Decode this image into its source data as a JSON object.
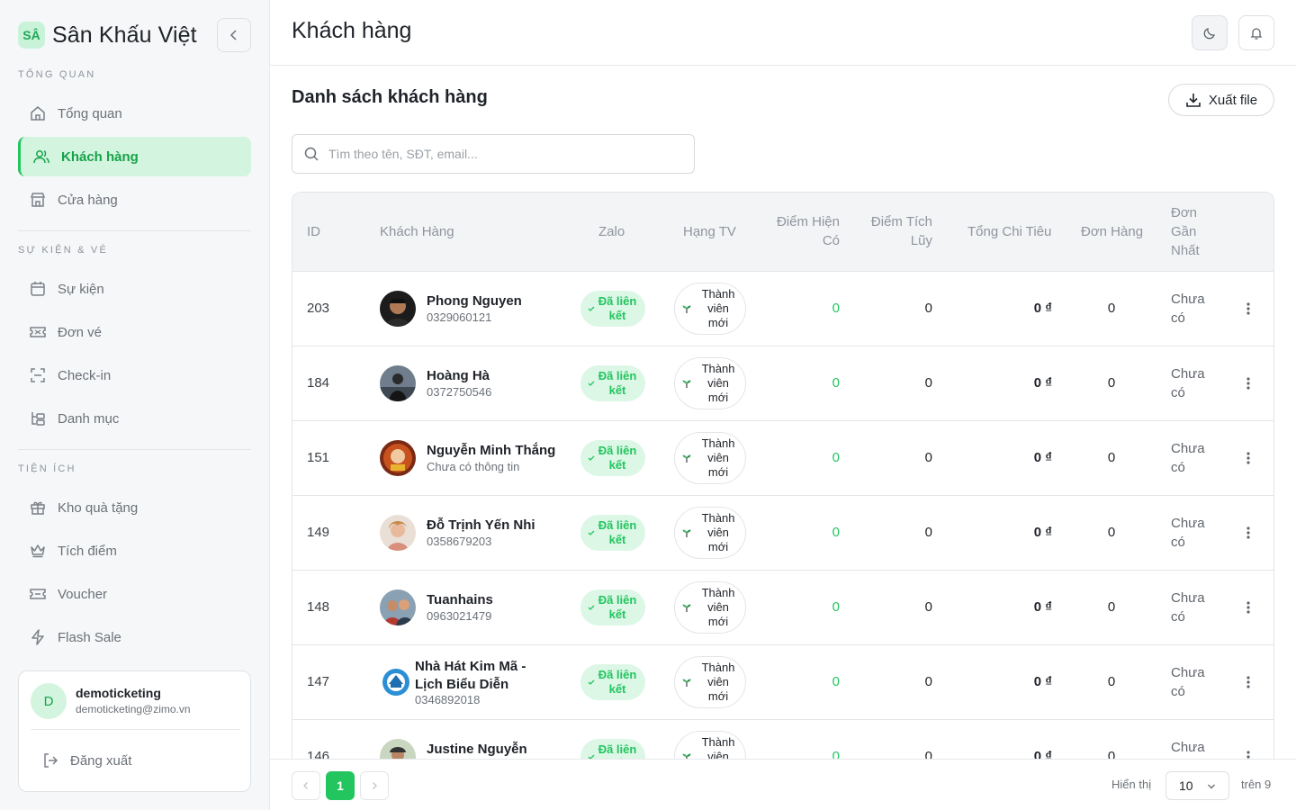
{
  "brand": {
    "logo_text": "SÂ",
    "name": "Sân Khấu Việt"
  },
  "sidebar": {
    "sections": [
      {
        "title": "TỔNG QUAN",
        "items": [
          {
            "label": "Tổng quan",
            "icon": "home-icon"
          },
          {
            "label": "Khách hàng",
            "icon": "users-icon",
            "active": true
          },
          {
            "label": "Cửa hàng",
            "icon": "store-icon"
          }
        ]
      },
      {
        "title": "SỰ KIỆN & VÉ",
        "items": [
          {
            "label": "Sự kiện",
            "icon": "calendar-icon"
          },
          {
            "label": "Đơn vé",
            "icon": "ticket-icon"
          },
          {
            "label": "Check-in",
            "icon": "scan-icon"
          },
          {
            "label": "Danh mục",
            "icon": "category-icon"
          }
        ]
      },
      {
        "title": "TIỆN ÍCH",
        "items": [
          {
            "label": "Kho quà tặng",
            "icon": "gift-icon"
          },
          {
            "label": "Tích điểm",
            "icon": "crown-icon"
          },
          {
            "label": "Voucher",
            "icon": "voucher-icon"
          },
          {
            "label": "Flash Sale",
            "icon": "lightning-icon"
          }
        ]
      }
    ],
    "user": {
      "initial": "D",
      "name": "demoticketing",
      "email": "demoticketing@zimo.vn",
      "logout_label": "Đăng xuất"
    }
  },
  "header": {
    "title": "Khách hàng"
  },
  "main": {
    "section_title": "Danh sách khách hàng",
    "export_label": "Xuất file",
    "search_placeholder": "Tìm theo tên, SĐT, email...",
    "columns": [
      "ID",
      "Khách Hàng",
      "Zalo",
      "Hạng TV",
      "Điểm Hiện Có",
      "Điểm Tích Lũy",
      "Tổng Chi Tiêu",
      "Đơn Hàng",
      "Đơn Gần Nhất"
    ],
    "rows": [
      {
        "id": "203",
        "name": "Phong Nguyen",
        "sub": "0329060121",
        "zalo": "Đã liên kết",
        "tier": "Thành viên mới",
        "points": "0",
        "accumulated": "0",
        "spent": "0 ₫",
        "orders": "0",
        "last_order": "Chưa có"
      },
      {
        "id": "184",
        "name": "Hoàng Hà",
        "sub": "0372750546",
        "zalo": "Đã liên kết",
        "tier": "Thành viên mới",
        "points": "0",
        "accumulated": "0",
        "spent": "0 ₫",
        "orders": "0",
        "last_order": "Chưa có"
      },
      {
        "id": "151",
        "name": "Nguyễn Minh Thắng",
        "sub": "Chưa có thông tin",
        "zalo": "Đã liên kết",
        "tier": "Thành viên mới",
        "points": "0",
        "accumulated": "0",
        "spent": "0 ₫",
        "orders": "0",
        "last_order": "Chưa có"
      },
      {
        "id": "149",
        "name": "Đỗ Trịnh Yến Nhi",
        "sub": "0358679203",
        "zalo": "Đã liên kết",
        "tier": "Thành viên mới",
        "points": "0",
        "accumulated": "0",
        "spent": "0 ₫",
        "orders": "0",
        "last_order": "Chưa có"
      },
      {
        "id": "148",
        "name": "Tuanhains",
        "sub": "0963021479",
        "zalo": "Đã liên kết",
        "tier": "Thành viên mới",
        "points": "0",
        "accumulated": "0",
        "spent": "0 ₫",
        "orders": "0",
        "last_order": "Chưa có"
      },
      {
        "id": "147",
        "name": "Nhà Hát Kim Mã - Lịch Biểu Diễn",
        "sub": "0346892018",
        "zalo": "Đã liên kết",
        "tier": "Thành viên mới",
        "points": "0",
        "accumulated": "0",
        "spent": "0 ₫",
        "orders": "0",
        "last_order": "Chưa có"
      },
      {
        "id": "146",
        "name": "Justine Nguyễn",
        "sub": "",
        "zalo": "Đã liên kết",
        "tier": "Thành viên mới",
        "points": "0",
        "accumulated": "0",
        "spent": "0 ₫",
        "orders": "0",
        "last_order": "Chưa có"
      }
    ]
  },
  "pagination": {
    "current_page": "1",
    "show_label": "Hiển thị",
    "page_size": "10",
    "total_label": "trên 9"
  },
  "colors": {
    "accent": "#22c55e",
    "accent_soft": "#d3f4de"
  }
}
